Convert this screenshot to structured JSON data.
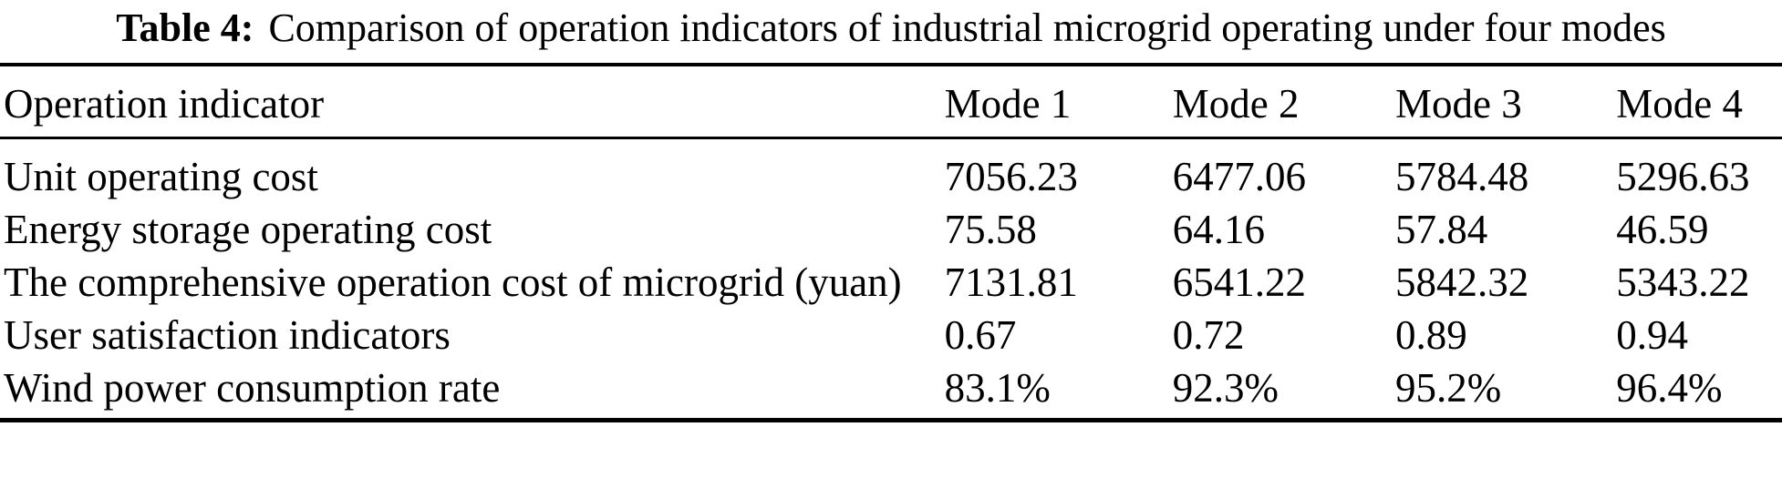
{
  "caption": {
    "label": "Table 4:",
    "text": "Comparison of operation indicators of industrial microgrid operating under four modes"
  },
  "table": {
    "columns": [
      "Operation indicator",
      "Mode 1",
      "Mode 2",
      "Mode 3",
      "Mode 4"
    ],
    "rows": [
      {
        "label": "Unit operating cost",
        "values": [
          "7056.23",
          "6477.06",
          "5784.48",
          "5296.63"
        ]
      },
      {
        "label": "Energy storage operating cost",
        "values": [
          "75.58",
          "64.16",
          "57.84",
          "46.59"
        ]
      },
      {
        "label": "The comprehensive operation cost of microgrid (yuan)",
        "values": [
          "7131.81",
          "6541.22",
          "5842.32",
          "5343.22"
        ]
      },
      {
        "label": "User satisfaction indicators",
        "values": [
          "0.67",
          "0.72",
          "0.89",
          "0.94"
        ]
      },
      {
        "label": "Wind power consumption rate",
        "values": [
          "83.1%",
          "92.3%",
          "95.2%",
          "96.4%"
        ]
      }
    ]
  },
  "colors": {
    "text": "#000000",
    "background": "#ffffff",
    "rule": "#000000"
  }
}
